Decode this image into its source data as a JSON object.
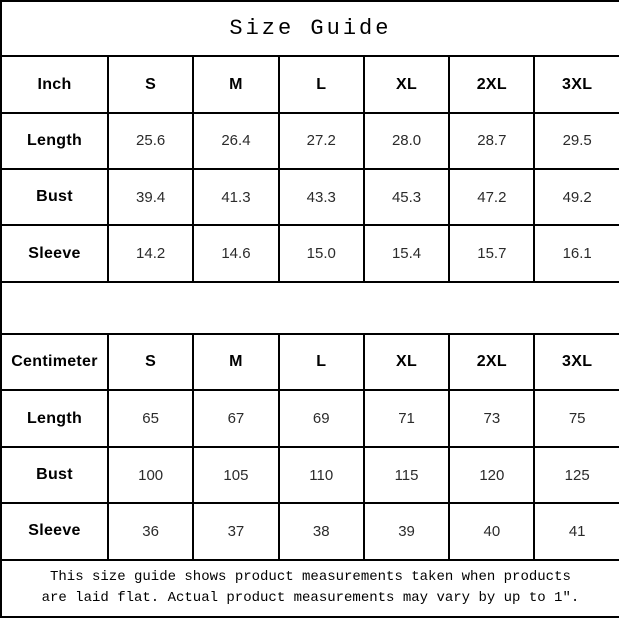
{
  "title": "Size Guide",
  "size_labels": [
    "S",
    "M",
    "L",
    "XL",
    "2XL",
    "3XL"
  ],
  "inch_table": {
    "unit_label": "Inch",
    "rows": [
      {
        "label": "Length",
        "values": [
          "25.6",
          "26.4",
          "27.2",
          "28.0",
          "28.7",
          "29.5"
        ]
      },
      {
        "label": "Bust",
        "values": [
          "39.4",
          "41.3",
          "43.3",
          "45.3",
          "47.2",
          "49.2"
        ]
      },
      {
        "label": "Sleeve",
        "values": [
          "14.2",
          "14.6",
          "15.0",
          "15.4",
          "15.7",
          "16.1"
        ]
      }
    ]
  },
  "cm_table": {
    "unit_label": "Centimeter",
    "rows": [
      {
        "label": "Length",
        "values": [
          "65",
          "67",
          "69",
          "71",
          "73",
          "75"
        ]
      },
      {
        "label": "Bust",
        "values": [
          "100",
          "105",
          "110",
          "115",
          "120",
          "125"
        ]
      },
      {
        "label": "Sleeve",
        "values": [
          "36",
          "37",
          "38",
          "39",
          "40",
          "41"
        ]
      }
    ]
  },
  "footer": {
    "line1": "This size guide shows product measurements taken when products",
    "line2": "are laid flat. Actual product measurements may vary by up to 1″."
  }
}
